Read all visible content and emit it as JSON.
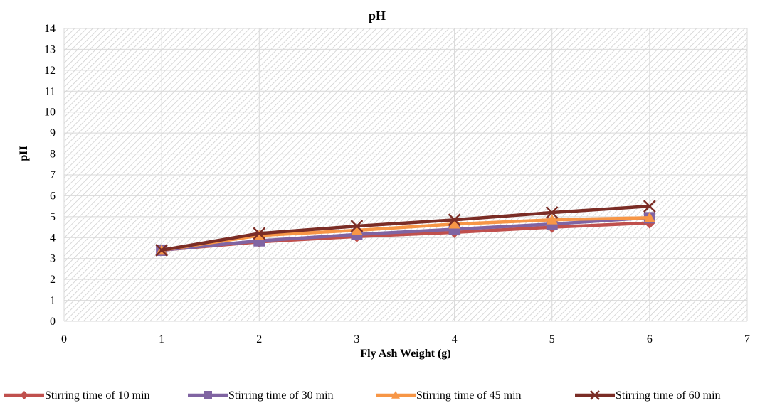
{
  "chart_data": {
    "type": "line",
    "title": "pH",
    "xlabel": "Fly Ash Weight (g)",
    "ylabel": "pH",
    "xlim": [
      0,
      7
    ],
    "ylim": [
      0,
      14
    ],
    "x_ticks": [
      0,
      1,
      2,
      3,
      4,
      5,
      6,
      7
    ],
    "y_ticks": [
      0,
      1,
      2,
      3,
      4,
      5,
      6,
      7,
      8,
      9,
      10,
      11,
      12,
      13,
      14
    ],
    "grid": true,
    "legend_position": "bottom",
    "plot_background": "diagonal hatch",
    "x": [
      1,
      2,
      3,
      4,
      5,
      6
    ],
    "series": [
      {
        "name": "Stirring time of 10 min",
        "color": "#C0504D",
        "marker": "diamond",
        "values": [
          3.4,
          3.8,
          4.05,
          4.25,
          4.5,
          4.7
        ]
      },
      {
        "name": "Stirring time of 30 min",
        "color": "#8064A2",
        "marker": "square",
        "values": [
          3.4,
          3.85,
          4.15,
          4.4,
          4.65,
          4.95
        ]
      },
      {
        "name": "Stirring time of 45 min",
        "color": "#F79646",
        "marker": "triangle",
        "values": [
          3.4,
          4.1,
          4.35,
          4.65,
          4.85,
          4.95
        ]
      },
      {
        "name": "Stirring time of 60 min",
        "color": "#7B2D26",
        "marker": "x",
        "values": [
          3.4,
          4.2,
          4.55,
          4.85,
          5.2,
          5.5
        ]
      }
    ]
  }
}
